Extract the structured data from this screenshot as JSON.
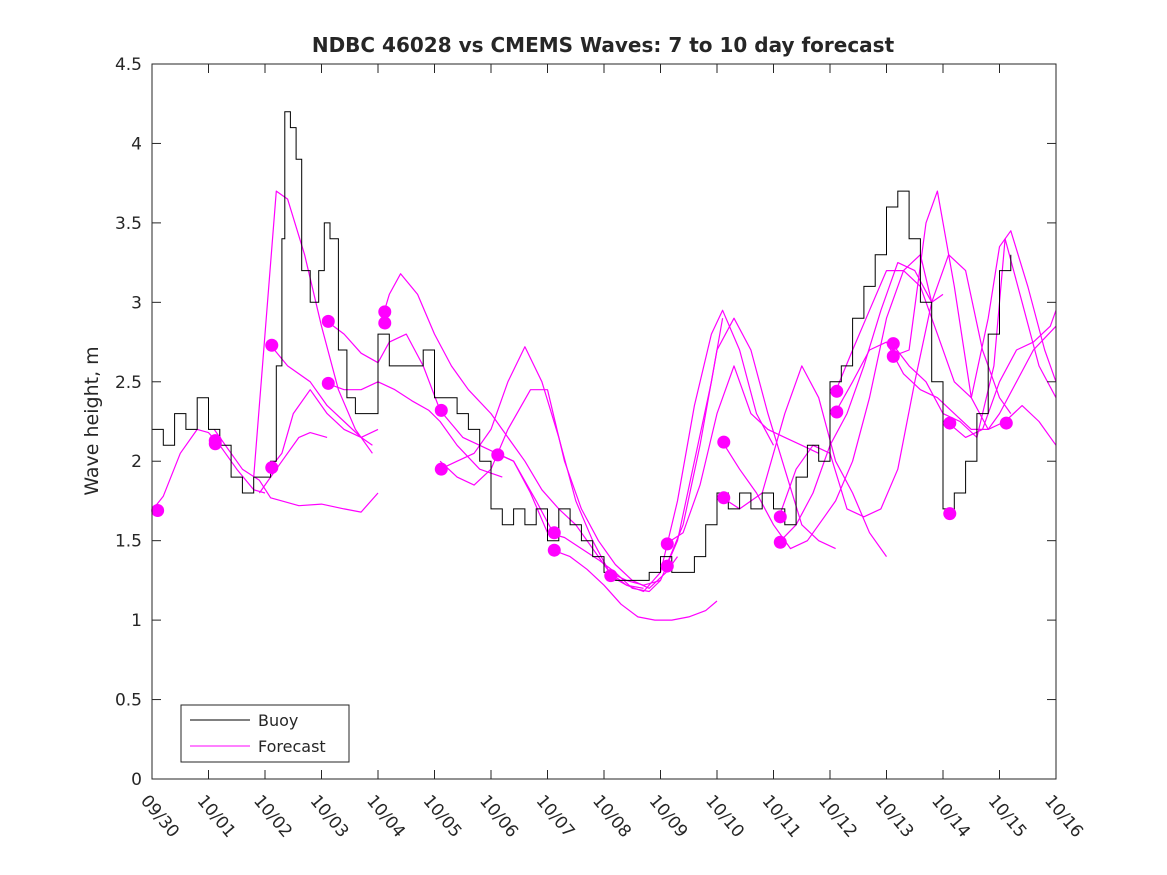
{
  "chart_data": {
    "type": "line",
    "title": "NDBC 46028 vs CMEMS Waves: 7 to 10 day forecast",
    "xlabel": "",
    "ylabel": "Wave height, m",
    "xlim": [
      0,
      16
    ],
    "ylim": [
      0,
      4.5
    ],
    "x_tick_labels": [
      "09/30",
      "10/01",
      "10/02",
      "10/03",
      "10/04",
      "10/05",
      "10/06",
      "10/07",
      "10/08",
      "10/09",
      "10/10",
      "10/11",
      "10/12",
      "10/13",
      "10/14",
      "10/15",
      "10/16"
    ],
    "y_tick_labels": [
      "0",
      "0.5",
      "1",
      "1.5",
      "2",
      "2.5",
      "3",
      "3.5",
      "4",
      "4.5"
    ],
    "y_ticks": [
      0,
      0.5,
      1,
      1.5,
      2,
      2.5,
      3,
      3.5,
      4,
      4.5
    ],
    "legend": {
      "position": "bottom-left",
      "entries": [
        "Buoy",
        "Forecast"
      ]
    },
    "colors": {
      "buoy": "#000000",
      "forecast": "#ff00ff",
      "axis": "#262626"
    },
    "buoy": {
      "name": "Buoy",
      "x": [
        0,
        0.2,
        0.4,
        0.6,
        0.8,
        1.0,
        1.2,
        1.4,
        1.6,
        1.8,
        2.0,
        2.1,
        2.2,
        2.3,
        2.35,
        2.45,
        2.55,
        2.65,
        2.8,
        2.95,
        3.05,
        3.15,
        3.3,
        3.45,
        3.6,
        3.8,
        4.0,
        4.2,
        4.4,
        4.6,
        4.8,
        5.0,
        5.2,
        5.4,
        5.6,
        5.8,
        6.0,
        6.2,
        6.4,
        6.6,
        6.8,
        7.0,
        7.2,
        7.4,
        7.6,
        7.8,
        8.0,
        8.2,
        8.4,
        8.6,
        8.8,
        9.0,
        9.2,
        9.4,
        9.6,
        9.8,
        10.0,
        10.2,
        10.4,
        10.6,
        10.8,
        11.0,
        11.2,
        11.4,
        11.6,
        11.8,
        12.0,
        12.2,
        12.4,
        12.6,
        12.8,
        13.0,
        13.2,
        13.4,
        13.6,
        13.8,
        14.0,
        14.1,
        14.2,
        14.4,
        14.6,
        14.8,
        15.0,
        15.2
      ],
      "y": [
        2.2,
        2.1,
        2.3,
        2.2,
        2.4,
        2.2,
        2.1,
        1.9,
        1.8,
        1.9,
        1.9,
        2.0,
        2.6,
        3.4,
        4.2,
        4.1,
        3.9,
        3.2,
        3.0,
        3.2,
        3.5,
        3.4,
        2.7,
        2.4,
        2.3,
        2.3,
        2.8,
        2.6,
        2.6,
        2.6,
        2.7,
        2.4,
        2.4,
        2.3,
        2.2,
        2.0,
        1.7,
        1.6,
        1.7,
        1.6,
        1.7,
        1.5,
        1.7,
        1.6,
        1.5,
        1.4,
        1.3,
        1.25,
        1.25,
        1.25,
        1.3,
        1.4,
        1.3,
        1.3,
        1.4,
        1.6,
        1.8,
        1.7,
        1.8,
        1.7,
        1.8,
        1.7,
        1.6,
        1.9,
        2.1,
        2.0,
        2.5,
        2.6,
        2.9,
        3.1,
        3.3,
        3.6,
        3.7,
        3.4,
        3.0,
        2.5,
        1.7,
        1.65,
        1.8,
        2.0,
        2.3,
        2.8,
        3.2,
        3.3
      ]
    },
    "forecast": [
      {
        "name": "Forecast",
        "x": [
          0,
          0.2,
          0.5,
          0.8,
          1.0,
          1.2,
          1.5,
          1.8,
          2.0
        ],
        "y": [
          1.69,
          1.78,
          2.05,
          2.2,
          2.18,
          2.1,
          1.95,
          1.82,
          1.8
        ]
      },
      {
        "name": "Forecast",
        "x": [
          1.1,
          1.3,
          1.6,
          1.9,
          2.1,
          2.3,
          2.6,
          3.0,
          3.4,
          3.7,
          4.0
        ],
        "y": [
          2.2,
          2.1,
          1.95,
          1.88,
          1.77,
          1.75,
          1.72,
          1.73,
          1.7,
          1.68,
          1.8
        ]
      },
      {
        "name": "Forecast",
        "x": [
          2.1,
          2.3,
          2.5,
          2.8,
          3.1,
          3.4,
          3.7,
          4.0
        ],
        "y": [
          1.96,
          2.05,
          2.3,
          2.45,
          2.3,
          2.2,
          2.15,
          2.2
        ]
      },
      {
        "name": "Forecast",
        "x": [
          1.9,
          2.1,
          2.3,
          2.6,
          2.8,
          3.1
        ],
        "y": [
          1.8,
          1.9,
          2.0,
          2.15,
          2.18,
          2.15
        ]
      },
      {
        "name": "Forecast",
        "x": [
          1.8,
          2.0,
          2.2,
          2.4,
          2.7,
          3.0,
          3.3,
          3.6,
          3.9
        ],
        "y": [
          1.9,
          2.8,
          3.7,
          3.65,
          3.3,
          2.85,
          2.45,
          2.2,
          2.05
        ]
      },
      {
        "name": "Forecast",
        "x": [
          2.1,
          2.4,
          2.8,
          3.1,
          3.4,
          3.7,
          3.9
        ],
        "y": [
          2.73,
          2.6,
          2.5,
          2.35,
          2.25,
          2.15,
          2.1
        ]
      },
      {
        "name": "Forecast",
        "x": [
          3.1,
          3.4,
          3.7,
          4.0,
          4.3,
          4.6,
          4.9,
          5.1,
          5.4,
          5.8,
          6.2
        ],
        "y": [
          2.49,
          2.45,
          2.45,
          2.5,
          2.45,
          2.38,
          2.32,
          2.25,
          2.1,
          1.95,
          1.9
        ]
      },
      {
        "name": "Forecast",
        "x": [
          3.1,
          3.4,
          3.7,
          4.0,
          4.2,
          4.5,
          4.8,
          5.1,
          5.5,
          5.8,
          6.1,
          6.4,
          6.8,
          7.1
        ],
        "y": [
          2.88,
          2.8,
          2.68,
          2.62,
          2.75,
          2.8,
          2.6,
          2.32,
          2.15,
          2.1,
          2.05,
          2.0,
          1.75,
          1.55
        ]
      },
      {
        "name": "Forecast",
        "x": [
          4.1,
          4.2,
          4.4,
          4.7,
          5.0,
          5.3,
          5.6,
          6.0,
          6.3,
          6.6,
          6.9,
          7.2,
          7.5,
          7.8,
          8.1,
          8.4,
          8.7,
          9.0
        ],
        "y": [
          2.93,
          3.05,
          3.18,
          3.05,
          2.8,
          2.6,
          2.45,
          2.3,
          2.15,
          2.0,
          1.82,
          1.7,
          1.6,
          1.45,
          1.3,
          1.25,
          1.22,
          1.25
        ]
      },
      {
        "name": "Forecast",
        "x": [
          5.1,
          5.4,
          5.7,
          6.0,
          6.3,
          6.6,
          6.9,
          7.2,
          7.5,
          7.8,
          8.1,
          8.4,
          8.7
        ],
        "y": [
          1.95,
          2.0,
          2.05,
          2.2,
          2.5,
          2.72,
          2.5,
          2.15,
          1.75,
          1.5,
          1.3,
          1.22,
          1.2
        ]
      },
      {
        "name": "Forecast",
        "x": [
          5.1,
          5.4,
          5.7,
          6.0,
          6.3,
          6.7,
          7.0,
          7.3,
          7.6,
          7.9,
          8.2,
          8.5,
          8.8,
          9.1,
          9.3
        ],
        "y": [
          2.0,
          1.9,
          1.85,
          1.95,
          2.2,
          2.45,
          2.45,
          2.0,
          1.7,
          1.5,
          1.35,
          1.25,
          1.2,
          1.3,
          1.4
        ]
      },
      {
        "name": "Forecast",
        "x": [
          6.1,
          6.4,
          6.7,
          7.0,
          7.3,
          7.6,
          7.9,
          8.2,
          8.5,
          8.8,
          9.0,
          9.3,
          9.6,
          9.9,
          10.1
        ],
        "y": [
          2.05,
          2.0,
          1.8,
          1.55,
          1.52,
          1.45,
          1.38,
          1.3,
          1.2,
          1.18,
          1.25,
          1.5,
          2.0,
          2.5,
          2.9
        ]
      },
      {
        "name": "Forecast",
        "x": [
          7.1,
          7.4,
          7.7,
          8.0,
          8.3,
          8.6,
          8.9,
          9.2,
          9.5,
          9.8,
          10.0
        ],
        "y": [
          1.44,
          1.4,
          1.32,
          1.22,
          1.1,
          1.02,
          1.0,
          1.0,
          1.02,
          1.06,
          1.12
        ]
      },
      {
        "name": "Forecast",
        "x": [
          8.1,
          8.4,
          8.7,
          9.0,
          9.3,
          9.6,
          9.9,
          10.1,
          10.4,
          10.7,
          11.0
        ],
        "y": [
          1.28,
          1.22,
          1.18,
          1.3,
          1.75,
          2.35,
          2.8,
          2.95,
          2.7,
          2.3,
          2.1
        ]
      },
      {
        "name": "Forecast",
        "x": [
          9.1,
          9.4,
          9.7,
          10.0,
          10.3,
          10.6,
          10.9,
          11.2,
          11.5,
          11.8,
          12.1
        ],
        "y": [
          1.34,
          1.6,
          2.1,
          2.7,
          2.9,
          2.7,
          2.3,
          1.95,
          1.6,
          1.5,
          1.45
        ]
      },
      {
        "name": "Forecast",
        "x": [
          9.1,
          9.4,
          9.7,
          10.0,
          10.3,
          10.6,
          10.9,
          11.2,
          11.5,
          11.8
        ],
        "y": [
          1.48,
          1.55,
          1.85,
          2.3,
          2.6,
          2.3,
          2.2,
          2.15,
          2.1,
          2.05
        ]
      },
      {
        "name": "Forecast",
        "x": [
          10.1,
          10.4,
          10.7,
          11.0,
          11.3,
          11.6,
          11.9,
          12.1,
          12.4,
          12.7,
          13.0,
          13.3,
          13.6,
          13.8
        ],
        "y": [
          2.12,
          1.95,
          1.8,
          1.6,
          1.45,
          1.5,
          1.65,
          1.75,
          2.0,
          2.4,
          2.9,
          3.2,
          3.3,
          3.0
        ]
      },
      {
        "name": "Forecast",
        "x": [
          10.1,
          10.4,
          10.8,
          11.2,
          11.5,
          11.8,
          12.1,
          12.4,
          12.7,
          13.0
        ],
        "y": [
          1.77,
          1.7,
          1.8,
          2.3,
          2.6,
          2.4,
          2.0,
          1.8,
          1.55,
          1.4
        ]
      },
      {
        "name": "Forecast",
        "x": [
          11.1,
          11.4,
          11.7,
          12.0,
          12.3,
          12.6,
          12.9,
          13.2,
          13.5,
          13.8,
          14.1,
          14.4,
          14.7,
          15.0,
          15.2
        ],
        "y": [
          1.65,
          1.95,
          2.1,
          2.05,
          1.7,
          1.65,
          1.7,
          1.95,
          2.5,
          3.0,
          3.3,
          3.2,
          2.7,
          2.4,
          2.3
        ]
      },
      {
        "name": "Forecast",
        "x": [
          11.1,
          11.4,
          11.7,
          12.0,
          12.3,
          12.6,
          12.9,
          13.2,
          13.5,
          13.8,
          14.0
        ],
        "y": [
          1.49,
          1.6,
          1.8,
          2.1,
          2.3,
          2.6,
          2.95,
          3.25,
          3.2,
          3.0,
          3.05
        ]
      },
      {
        "name": "Forecast",
        "x": [
          12.1,
          12.4,
          12.7,
          13.0,
          13.3,
          13.6,
          13.9,
          14.2,
          14.5,
          14.8,
          15.0,
          15.2,
          15.5,
          15.8,
          16.0
        ],
        "y": [
          2.44,
          2.7,
          2.95,
          3.2,
          3.2,
          3.1,
          2.8,
          2.5,
          2.4,
          2.9,
          3.35,
          3.45,
          3.1,
          2.7,
          2.5
        ]
      },
      {
        "name": "Forecast",
        "x": [
          12.1,
          12.4,
          12.7,
          13.0,
          13.3,
          13.6,
          13.9,
          14.2,
          14.5,
          14.8,
          15.1,
          15.4,
          15.7,
          16.0
        ],
        "y": [
          2.31,
          2.5,
          2.7,
          2.75,
          2.55,
          2.45,
          2.4,
          2.3,
          2.2,
          2.2,
          2.25,
          2.35,
          2.25,
          2.1
        ]
      },
      {
        "name": "Forecast",
        "x": [
          13.1,
          13.4,
          13.7,
          13.9,
          14.2,
          14.5,
          14.8,
          15.0,
          15.3,
          15.6,
          16.0
        ],
        "y": [
          2.66,
          2.7,
          3.5,
          3.7,
          3.1,
          2.4,
          2.2,
          2.3,
          2.5,
          2.7,
          2.85
        ]
      },
      {
        "name": "Forecast",
        "x": [
          13.1,
          13.4,
          13.7,
          14.0,
          14.3,
          14.6,
          14.9,
          15.1,
          15.4,
          15.7,
          16.0
        ],
        "y": [
          2.74,
          2.6,
          2.5,
          2.3,
          2.25,
          2.15,
          2.6,
          3.4,
          3.0,
          2.6,
          2.4
        ]
      },
      {
        "name": "Forecast",
        "x": [
          14.1,
          14.4,
          14.7,
          15.0,
          15.3,
          15.6,
          15.9,
          16.0
        ],
        "y": [
          2.24,
          2.15,
          2.2,
          2.5,
          2.7,
          2.75,
          2.85,
          2.95
        ]
      }
    ],
    "forecast_start_markers": {
      "x": [
        0.1,
        1.12,
        1.12,
        2.12,
        2.12,
        3.12,
        3.12,
        4.12,
        4.12,
        5.12,
        5.12,
        6.12,
        7.12,
        7.12,
        8.12,
        9.12,
        9.12,
        10.12,
        10.12,
        11.12,
        11.12,
        12.12,
        12.12,
        13.12,
        13.12,
        14.12,
        14.12,
        15.12
      ],
      "y": [
        1.69,
        2.13,
        2.11,
        2.73,
        1.96,
        2.88,
        2.49,
        2.94,
        2.87,
        2.32,
        1.95,
        2.04,
        1.55,
        1.44,
        1.28,
        1.48,
        1.34,
        2.12,
        1.77,
        1.65,
        1.49,
        2.44,
        2.31,
        2.74,
        2.66,
        2.24,
        1.67,
        2.24
      ]
    }
  }
}
